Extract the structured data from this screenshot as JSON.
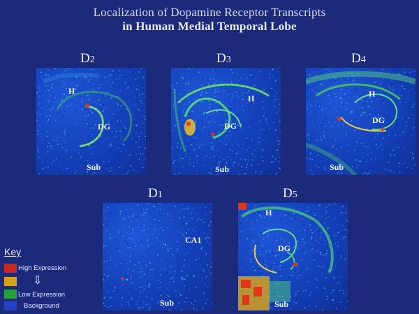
{
  "title": {
    "line1": "Localization of Dopamine Receptor Transcripts",
    "line2": "in Human Medial Temporal Lobe"
  },
  "panels": [
    {
      "id": "d2",
      "label": "D",
      "label_sub": "2",
      "tags": [
        "H",
        "DG",
        "Sub"
      ]
    },
    {
      "id": "d3",
      "label": "D",
      "label_sub": "3",
      "tags": [
        "H",
        "DG",
        "Sub"
      ]
    },
    {
      "id": "d4",
      "label": "D",
      "label_sub": "4",
      "tags": [
        "H",
        "DG",
        "Sub"
      ]
    },
    {
      "id": "d1",
      "label": "D",
      "label_sub": "1",
      "tags": [
        "CA1",
        "Sub"
      ]
    },
    {
      "id": "d5",
      "label": "D",
      "label_sub": "5",
      "tags": [
        "H",
        "DG",
        "Sub"
      ]
    }
  ],
  "key": {
    "title": "Key",
    "items": [
      {
        "label": "High Expression",
        "color": "#c8281e"
      },
      {
        "label": "",
        "color": "#d6a21c"
      },
      {
        "label": "Low Expression",
        "color": "#27a03a"
      },
      {
        "label": "Background",
        "color": "#2443c8"
      }
    ],
    "arrow": "⇩"
  },
  "colors": {
    "background": "#1c2a7c",
    "panel_blue": "#1646c2",
    "signal_green": "#4fd07a",
    "signal_yellow": "#f0d23a",
    "signal_red": "#e0361c"
  }
}
